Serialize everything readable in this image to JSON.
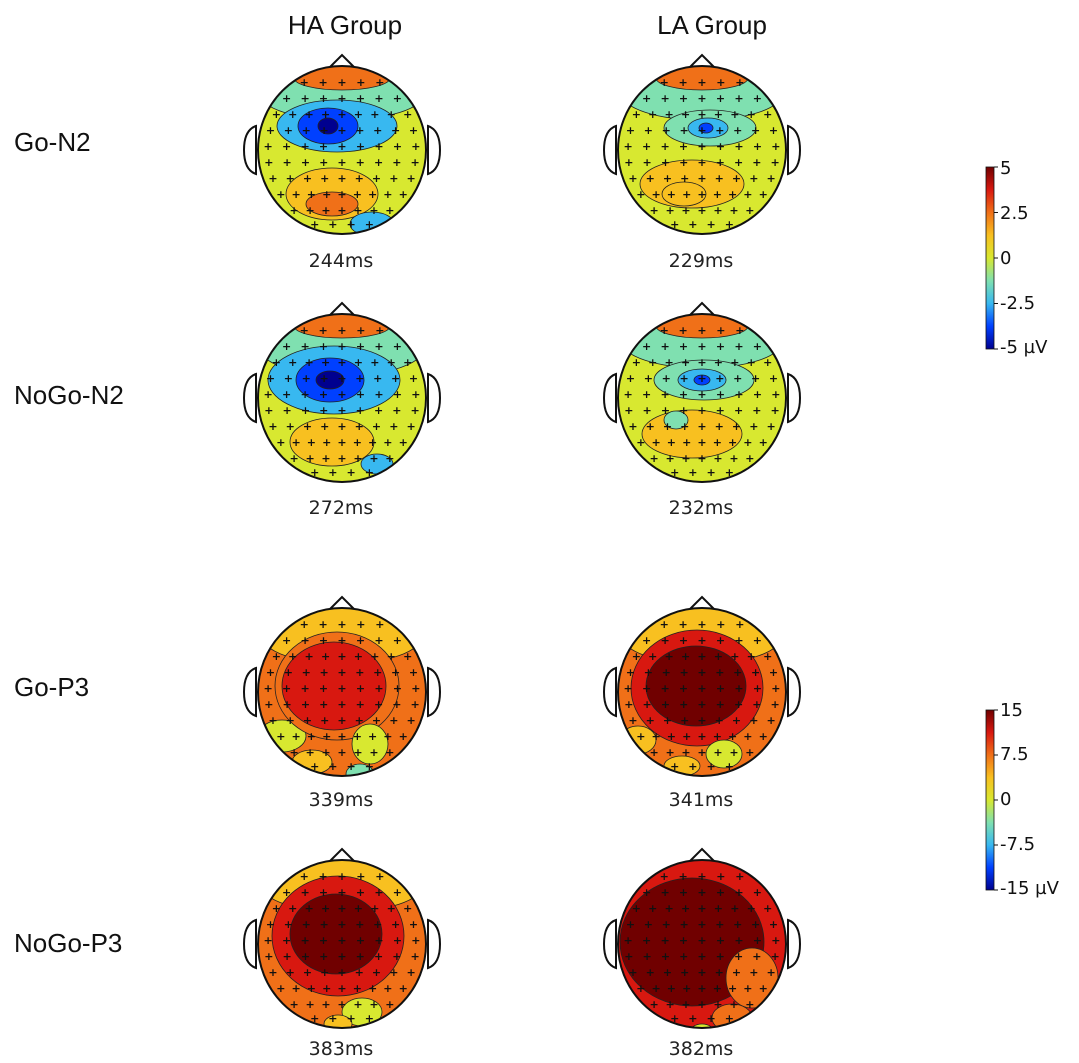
{
  "columns": [
    "HA Group",
    "LA Group"
  ],
  "rows": [
    {
      "label": "Go-N2",
      "component": "N2",
      "times": [
        "244ms",
        "229ms"
      ],
      "patterns": [
        "n2-ha-go",
        "n2-la-go"
      ]
    },
    {
      "label": "NoGo-N2",
      "component": "N2",
      "times": [
        "272ms",
        "232ms"
      ],
      "patterns": [
        "n2-ha-nogo",
        "n2-la-nogo"
      ]
    },
    {
      "label": "Go-P3",
      "component": "P3",
      "times": [
        "339ms",
        "341ms"
      ],
      "patterns": [
        "p3-ha-go",
        "p3-la-go"
      ]
    },
    {
      "label": "NoGo-P3",
      "component": "P3",
      "times": [
        "383ms",
        "382ms"
      ],
      "patterns": [
        "p3-ha-nogo",
        "p3-la-nogo"
      ]
    }
  ],
  "colorbars": {
    "n2": {
      "ticks": [
        "5",
        "2.5",
        "0",
        "-2.5",
        "-5 µV"
      ]
    },
    "p3": {
      "ticks": [
        "15",
        "7.5",
        "0",
        "-7.5",
        "-15 µV"
      ]
    }
  },
  "colors": {
    "scale": [
      "#00008f",
      "#0040ff",
      "#38b8f0",
      "#7fe0b0",
      "#d8e830",
      "#f8c020",
      "#f07018",
      "#d81810",
      "#700000"
    ],
    "outline": "#111111",
    "electrode": "#111111"
  }
}
